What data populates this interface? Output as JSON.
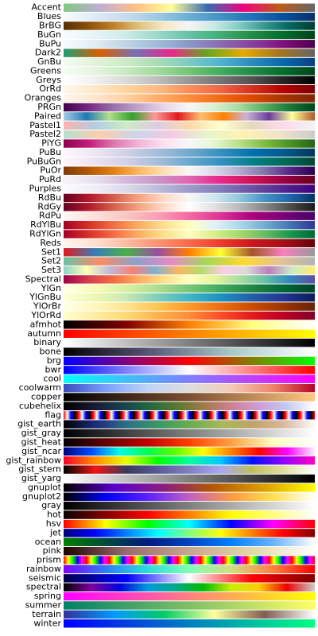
{
  "colormaps": [
    {
      "name": "Accent",
      "colors": [
        "#7fc97f",
        "#beaed4",
        "#fdc086",
        "#ffff99",
        "#386cb0",
        "#f0027f",
        "#bf5b17",
        "#666666"
      ]
    },
    {
      "name": "Blues",
      "colors": [
        "#f7fbff",
        "#deebf7",
        "#c6dbef",
        "#9ecae1",
        "#6baed6",
        "#4292c6",
        "#2171b5",
        "#08519c",
        "#08306b"
      ]
    },
    {
      "name": "BrBG",
      "colors": [
        "#543005",
        "#8c510a",
        "#bf812d",
        "#dfc27d",
        "#f6e8c3",
        "#f5f5f5",
        "#c7eae5",
        "#80cdc1",
        "#35978f",
        "#01665e",
        "#003c30"
      ]
    },
    {
      "name": "BuGn",
      "colors": [
        "#f7fcfd",
        "#e5f5f9",
        "#ccece6",
        "#99d8c9",
        "#66c2a4",
        "#41ae76",
        "#238b45",
        "#006d2c",
        "#00441b"
      ]
    },
    {
      "name": "BuPu",
      "colors": [
        "#f7fcfd",
        "#e0ecf4",
        "#bfd3e6",
        "#9ebcda",
        "#8c96c6",
        "#8c6bb1",
        "#88419d",
        "#810f7c",
        "#4d004b"
      ]
    },
    {
      "name": "Dark2",
      "colors": [
        "#1b9e77",
        "#d95f02",
        "#7570b3",
        "#e7298a",
        "#66a61e",
        "#e6ab02",
        "#a6761d",
        "#666666"
      ]
    },
    {
      "name": "GnBu",
      "colors": [
        "#f7fcf0",
        "#e0f3db",
        "#ccebc5",
        "#a8ddb5",
        "#7bccc4",
        "#4eb3d3",
        "#2b8cbe",
        "#0868ac",
        "#084081"
      ]
    },
    {
      "name": "Greens",
      "colors": [
        "#f7fcf5",
        "#e5f5e0",
        "#c7e9c0",
        "#a1d99b",
        "#74c476",
        "#41ab5d",
        "#238b45",
        "#006d2c",
        "#00441b"
      ]
    },
    {
      "name": "Greys",
      "colors": [
        "#ffffff",
        "#f0f0f0",
        "#d9d9d9",
        "#bdbdbd",
        "#969696",
        "#737373",
        "#525252",
        "#252525",
        "#000000"
      ]
    },
    {
      "name": "OrRd",
      "colors": [
        "#fff7ec",
        "#fee8c8",
        "#fdd49e",
        "#fdbb84",
        "#fc8d59",
        "#ef6548",
        "#d7301f",
        "#b30000",
        "#7f0000"
      ]
    },
    {
      "name": "Oranges",
      "colors": [
        "#fff5eb",
        "#fee6ce",
        "#fdd0a2",
        "#fdae6b",
        "#fd8d3c",
        "#f16913",
        "#d94801",
        "#a63603",
        "#7f2704"
      ]
    },
    {
      "name": "PRGn",
      "colors": [
        "#40004b",
        "#762a83",
        "#9970ab",
        "#c2a5cf",
        "#e7d4e8",
        "#f7f7f7",
        "#d9f0d3",
        "#a6dba0",
        "#5aae61",
        "#1b7837",
        "#00441b"
      ]
    },
    {
      "name": "Paired",
      "colors": [
        "#a6cee3",
        "#1f78b4",
        "#b2df8a",
        "#33a02c",
        "#fb9a99",
        "#e31a1c",
        "#fdbf6f",
        "#ff7f00",
        "#cab2d6",
        "#6a3d9a",
        "#ffff99",
        "#b15928"
      ]
    },
    {
      "name": "Pastel1",
      "colors": [
        "#fbb4ae",
        "#b3cde3",
        "#ccebc5",
        "#decbe4",
        "#fed9a6",
        "#ffffcc",
        "#e5d8bd",
        "#fddaec",
        "#f2f2f2"
      ]
    },
    {
      "name": "Pastel2",
      "colors": [
        "#b3e2cd",
        "#fdcdac",
        "#cbd5e8",
        "#f4cae4",
        "#e6f5c9",
        "#fff2ae",
        "#f1e2cc",
        "#cccccc"
      ]
    },
    {
      "name": "PiYG",
      "colors": [
        "#8e0152",
        "#c51b7d",
        "#de77ae",
        "#f1b6da",
        "#fde0ef",
        "#f7f7f7",
        "#e6f5d0",
        "#b8e186",
        "#7fbc41",
        "#4d9221",
        "#276419"
      ]
    },
    {
      "name": "PuBu",
      "colors": [
        "#fff7fb",
        "#ece7f2",
        "#d0d1e6",
        "#a6bddb",
        "#74a9cf",
        "#3690c0",
        "#0570b0",
        "#045a8d",
        "#023858"
      ]
    },
    {
      "name": "PuBuGn",
      "colors": [
        "#fff7fb",
        "#ece2f0",
        "#d0d1e6",
        "#a6bddb",
        "#67a9cf",
        "#3690c0",
        "#02818a",
        "#016c59",
        "#014636"
      ]
    },
    {
      "name": "PuOr",
      "colors": [
        "#7f3b08",
        "#b35806",
        "#e08214",
        "#fdb863",
        "#fee0b6",
        "#f7f7f7",
        "#d8daeb",
        "#b2abd2",
        "#8073ac",
        "#542788",
        "#2d004b"
      ]
    },
    {
      "name": "PuRd",
      "colors": [
        "#f7f4f9",
        "#e7e1ef",
        "#d4b9da",
        "#c994c7",
        "#df65b0",
        "#e7298a",
        "#ce1256",
        "#980043",
        "#67001f"
      ]
    },
    {
      "name": "Purples",
      "colors": [
        "#fcfbfd",
        "#efedf5",
        "#dadaeb",
        "#bcbddc",
        "#9e9ac8",
        "#807dba",
        "#6a51a3",
        "#54278f",
        "#3f007d"
      ]
    },
    {
      "name": "RdBu",
      "colors": [
        "#67001f",
        "#b2182b",
        "#d6604d",
        "#f4a582",
        "#fddbc7",
        "#f7f7f7",
        "#d1e5f0",
        "#92c5de",
        "#4393c3",
        "#2166ac",
        "#053061"
      ]
    },
    {
      "name": "RdGy",
      "colors": [
        "#67001f",
        "#b2182b",
        "#d6604d",
        "#f4a582",
        "#fddbc7",
        "#ffffff",
        "#e0e0e0",
        "#bababa",
        "#878787",
        "#4d4d4d",
        "#1a1a1a"
      ]
    },
    {
      "name": "RdPu",
      "colors": [
        "#fff7f3",
        "#fde0dd",
        "#fcc5c0",
        "#fa9fb5",
        "#f768a1",
        "#dd3497",
        "#ae017e",
        "#7a0177",
        "#49006a"
      ]
    },
    {
      "name": "RdYlBu",
      "colors": [
        "#a50026",
        "#d73027",
        "#f46d43",
        "#fdae61",
        "#fee090",
        "#ffffbf",
        "#e0f3f8",
        "#abd9e9",
        "#74add1",
        "#4575b4",
        "#313695"
      ]
    },
    {
      "name": "RdYlGn",
      "colors": [
        "#a50026",
        "#d73027",
        "#f46d43",
        "#fdae61",
        "#fee08b",
        "#ffffbf",
        "#d9ef8b",
        "#a6d96a",
        "#66bd63",
        "#1a9850",
        "#006837"
      ]
    },
    {
      "name": "Reds",
      "colors": [
        "#fff5f0",
        "#fee0d2",
        "#fcbba1",
        "#fc9272",
        "#fb6a4a",
        "#ef3b2c",
        "#cb181d",
        "#a50f15",
        "#67000d"
      ]
    },
    {
      "name": "Set1",
      "colors": [
        "#e41a1c",
        "#377eb8",
        "#4daf4a",
        "#984ea3",
        "#ff7f00",
        "#ffff33",
        "#a65628",
        "#f781bf",
        "#999999"
      ]
    },
    {
      "name": "Set2",
      "colors": [
        "#66c2a5",
        "#fc8d62",
        "#8da0cb",
        "#e78ac3",
        "#a6d854",
        "#ffd92f",
        "#e5c494",
        "#b3b3b3"
      ]
    },
    {
      "name": "Set3",
      "colors": [
        "#8dd3c7",
        "#ffffb3",
        "#bebada",
        "#fb8072",
        "#80b1d3",
        "#fdb462",
        "#b3de69",
        "#fccde5",
        "#d9d9d9",
        "#bc80bd",
        "#ccebc5",
        "#ffed6f"
      ]
    },
    {
      "name": "Spectral",
      "colors": [
        "#9e0142",
        "#d53e4f",
        "#f46d43",
        "#fdae61",
        "#fee08b",
        "#ffffbf",
        "#e6f598",
        "#abdda4",
        "#66c2a5",
        "#3288bd",
        "#5e4fa2"
      ]
    },
    {
      "name": "YlGn",
      "colors": [
        "#ffffe5",
        "#f7fcb9",
        "#d9f0a3",
        "#addd8e",
        "#78c679",
        "#41ab5d",
        "#238443",
        "#006837",
        "#004529"
      ]
    },
    {
      "name": "YlGnBu",
      "colors": [
        "#ffffd9",
        "#edf8b1",
        "#c7e9b4",
        "#7fcdbb",
        "#41b6c4",
        "#1d91c0",
        "#225ea8",
        "#253494",
        "#081d58"
      ]
    },
    {
      "name": "YlOrBr",
      "colors": [
        "#ffffe5",
        "#fff7bc",
        "#fee391",
        "#fec44f",
        "#fe9929",
        "#ec7014",
        "#cc4c02",
        "#993404",
        "#662506"
      ]
    },
    {
      "name": "YlOrRd",
      "colors": [
        "#ffffcc",
        "#ffeda0",
        "#fed976",
        "#feb24c",
        "#fd8d3c",
        "#fc4e2a",
        "#e31a1c",
        "#bd0026",
        "#800026"
      ]
    },
    {
      "name": "afmhot",
      "colors": [
        "#000000",
        "#800000",
        "#ff8000",
        "#ffff80",
        "#ffffff"
      ]
    },
    {
      "name": "autumn",
      "colors": [
        "#ff0000",
        "#ffff00"
      ]
    },
    {
      "name": "binary",
      "colors": [
        "#ffffff",
        "#000000"
      ]
    },
    {
      "name": "bone",
      "colors": [
        "#000000",
        "#545474",
        "#a8c8c8",
        "#ffffff"
      ]
    },
    {
      "name": "brg",
      "colors": [
        "#0000ff",
        "#ff0000",
        "#00ff00"
      ]
    },
    {
      "name": "bwr",
      "colors": [
        "#0000ff",
        "#ffffff",
        "#ff0000"
      ]
    },
    {
      "name": "cool",
      "colors": [
        "#00ffff",
        "#ff00ff"
      ]
    },
    {
      "name": "coolwarm",
      "colors": [
        "#3b4cc0",
        "#7b9ff9",
        "#c0d4f5",
        "#dddddd",
        "#f2cbb7",
        "#ee8468",
        "#b40426"
      ]
    },
    {
      "name": "copper",
      "colors": [
        "#000000",
        "#7c4f32",
        "#ffc77f"
      ]
    },
    {
      "name": "cubehelix",
      "colors": [
        "#000000",
        "#1a1530",
        "#163d4e",
        "#1f6642",
        "#54792f",
        "#a07949",
        "#d07e93",
        "#cf9cda",
        "#c1caf3",
        "#ffffff"
      ]
    },
    {
      "name": "flag",
      "colors": [
        "#ff0000",
        "#ffffff",
        "#0000ff",
        "#000000",
        "#ff0000"
      ],
      "repeat": 17
    },
    {
      "name": "gist_earth",
      "colors": [
        "#000000",
        "#1c2a7a",
        "#2d6e87",
        "#3b9667",
        "#68ac4c",
        "#a7b85a",
        "#c1a36b",
        "#d8b89d",
        "#fdfbfb"
      ]
    },
    {
      "name": "gist_gray",
      "colors": [
        "#000000",
        "#ffffff"
      ]
    },
    {
      "name": "gist_heat",
      "colors": [
        "#000000",
        "#600000",
        "#c00000",
        "#ff4000",
        "#ffa040",
        "#ffffc0",
        "#ffffff"
      ]
    },
    {
      "name": "gist_ncar",
      "colors": [
        "#000080",
        "#004cff",
        "#00ffe0",
        "#00ff50",
        "#5fff00",
        "#ffff00",
        "#ff8000",
        "#ff0000",
        "#ff00ff",
        "#fcf0fe"
      ]
    },
    {
      "name": "gist_rainbow",
      "colors": [
        "#ff0029",
        "#ff8c00",
        "#e8ff00",
        "#00ff00",
        "#00ff9c",
        "#00c7ff",
        "#0010ff",
        "#9400ff",
        "#ff00bf"
      ]
    },
    {
      "name": "gist_stern",
      "colors": [
        "#000000",
        "#f01414",
        "#3a3a5c",
        "#5a5a9a",
        "#8080c0",
        "#a8a8f0",
        "#c0c060",
        "#e0e0a0",
        "#ffffff"
      ]
    },
    {
      "name": "gist_yarg",
      "colors": [
        "#ffffff",
        "#000000"
      ]
    },
    {
      "name": "gnuplot",
      "colors": [
        "#000000",
        "#5a00cc",
        "#8b1e7f",
        "#b45a00",
        "#dfa000",
        "#ffff00"
      ]
    },
    {
      "name": "gnuplot2",
      "colors": [
        "#000000",
        "#0000ff",
        "#5a1fff",
        "#c060c0",
        "#ff9a3f",
        "#ffe04f",
        "#ffffff"
      ]
    },
    {
      "name": "gray",
      "colors": [
        "#000000",
        "#ffffff"
      ]
    },
    {
      "name": "hot",
      "colors": [
        "#0b0000",
        "#ff0000",
        "#ffff00",
        "#ffffff"
      ]
    },
    {
      "name": "hsv",
      "colors": [
        "#ff0000",
        "#ffff00",
        "#00ff00",
        "#00ffff",
        "#0000ff",
        "#ff00ff",
        "#ff0000"
      ]
    },
    {
      "name": "jet",
      "colors": [
        "#00007f",
        "#0000ff",
        "#007fff",
        "#00ffff",
        "#7fff7f",
        "#ffff00",
        "#ff7f00",
        "#ff0000",
        "#7f0000"
      ]
    },
    {
      "name": "ocean",
      "colors": [
        "#008000",
        "#004b3c",
        "#001a7f",
        "#0043be",
        "#0080ff",
        "#66b3ff",
        "#ffffff"
      ]
    },
    {
      "name": "pink",
      "colors": [
        "#1e0000",
        "#9a6b6b",
        "#c9a58d",
        "#e3d8a8",
        "#ffffff"
      ]
    },
    {
      "name": "prism",
      "colors": [
        "#ff0000",
        "#ffff00",
        "#00ff00",
        "#0000ff",
        "#ff00ff",
        "#ff0000"
      ],
      "repeat": 11
    },
    {
      "name": "rainbow",
      "colors": [
        "#8000ff",
        "#2c7ef7",
        "#2adddd",
        "#80ffb4",
        "#d4dd80",
        "#ff7f40",
        "#ff0000"
      ]
    },
    {
      "name": "seismic",
      "colors": [
        "#00004d",
        "#0000ff",
        "#ffffff",
        "#ff0000",
        "#800000"
      ]
    },
    {
      "name": "spectral",
      "colors": [
        "#000000",
        "#8000a0",
        "#0000dd",
        "#0099dd",
        "#00aa88",
        "#00bb00",
        "#ccee00",
        "#ffcc00",
        "#ee0000",
        "#cccccc"
      ]
    },
    {
      "name": "spring",
      "colors": [
        "#ff00ff",
        "#ffff00"
      ]
    },
    {
      "name": "summer",
      "colors": [
        "#008066",
        "#ffff66"
      ]
    },
    {
      "name": "terrain",
      "colors": [
        "#333399",
        "#0099ff",
        "#00cc66",
        "#ffff99",
        "#805c54",
        "#ffffff"
      ]
    },
    {
      "name": "winter",
      "colors": [
        "#0000ff",
        "#00ff80"
      ]
    }
  ]
}
